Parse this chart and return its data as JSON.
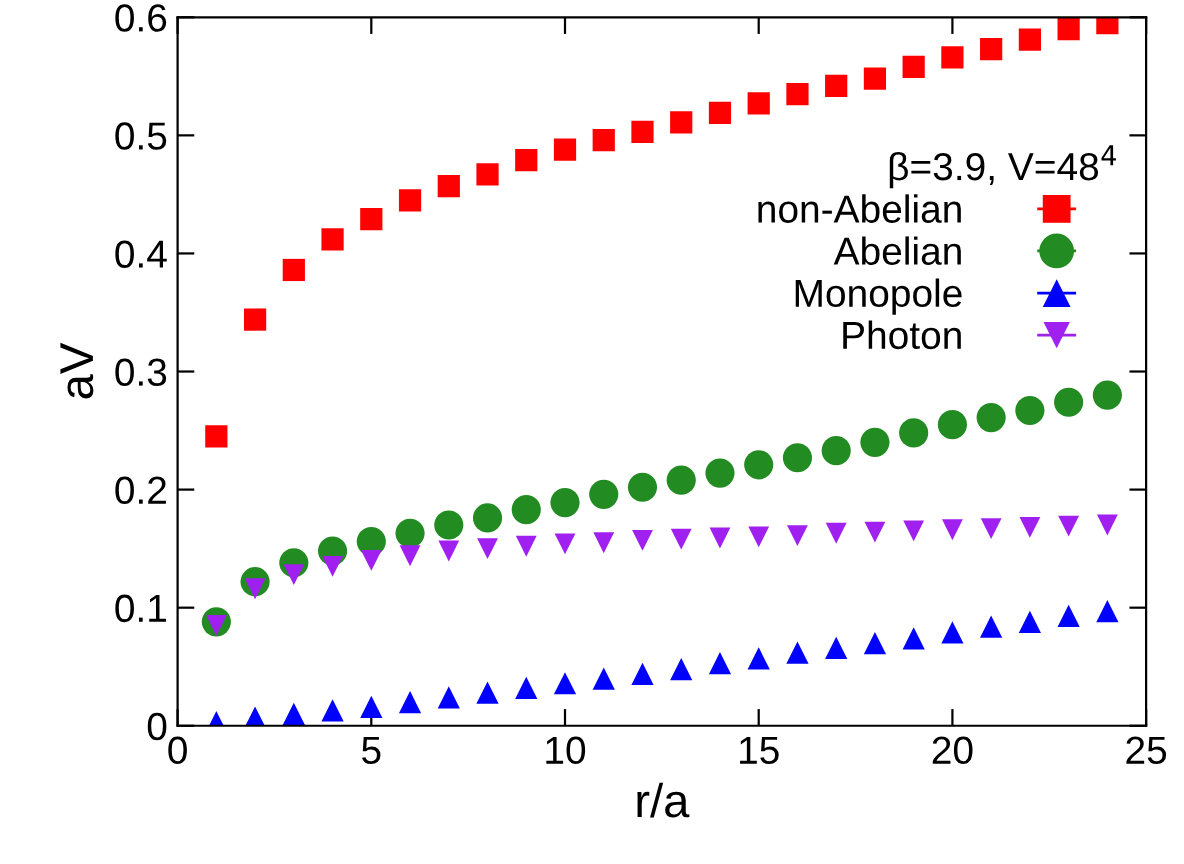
{
  "chart_data": {
    "type": "scatter",
    "xlabel": "r/a",
    "ylabel": "aV",
    "legend_title": "β=3.9, V=48$^{4}$",
    "x": [
      1,
      2,
      3,
      4,
      5,
      6,
      7,
      8,
      9,
      10,
      11,
      12,
      13,
      14,
      15,
      16,
      17,
      18,
      19,
      20,
      21,
      22,
      23,
      24
    ],
    "xlim": [
      0,
      25
    ],
    "xticks": [
      0,
      5,
      10,
      15,
      20,
      25
    ],
    "ylim": [
      0,
      0.6
    ],
    "yticks": [
      0,
      0.1,
      0.2,
      0.3,
      0.4,
      0.5,
      0.6
    ],
    "grid": false,
    "legend": "right",
    "series": [
      {
        "name": "non-Abelian",
        "color": "#ff0000",
        "marker": "square",
        "values": [
          0.245,
          0.344,
          0.386,
          0.412,
          0.429,
          0.445,
          0.457,
          0.467,
          0.479,
          0.488,
          0.496,
          0.503,
          0.511,
          0.519,
          0.527,
          0.535,
          0.542,
          0.548,
          0.558,
          0.566,
          0.573,
          0.581,
          0.59,
          0.595
        ]
      },
      {
        "name": "Abelian",
        "color": "#228b22",
        "marker": "circle",
        "values": [
          0.088,
          0.122,
          0.138,
          0.148,
          0.156,
          0.163,
          0.17,
          0.176,
          0.183,
          0.189,
          0.196,
          0.202,
          0.208,
          0.214,
          0.221,
          0.227,
          0.233,
          0.24,
          0.248,
          0.255,
          0.261,
          0.267,
          0.274,
          0.28
        ]
      },
      {
        "name": "Monopole",
        "color": "#0000ff",
        "marker": "triangle",
        "values": [
          0.003,
          0.007,
          0.01,
          0.013,
          0.016,
          0.02,
          0.024,
          0.028,
          0.032,
          0.036,
          0.04,
          0.044,
          0.048,
          0.053,
          0.057,
          0.062,
          0.066,
          0.07,
          0.074,
          0.079,
          0.084,
          0.088,
          0.093,
          0.097
        ]
      },
      {
        "name": "Photon",
        "color": "#a020f0",
        "marker": "triangle_down",
        "values": [
          0.085,
          0.116,
          0.128,
          0.135,
          0.14,
          0.144,
          0.148,
          0.15,
          0.152,
          0.154,
          0.155,
          0.157,
          0.158,
          0.159,
          0.16,
          0.161,
          0.163,
          0.164,
          0.165,
          0.166,
          0.167,
          0.168,
          0.169,
          0.17
        ]
      }
    ]
  }
}
